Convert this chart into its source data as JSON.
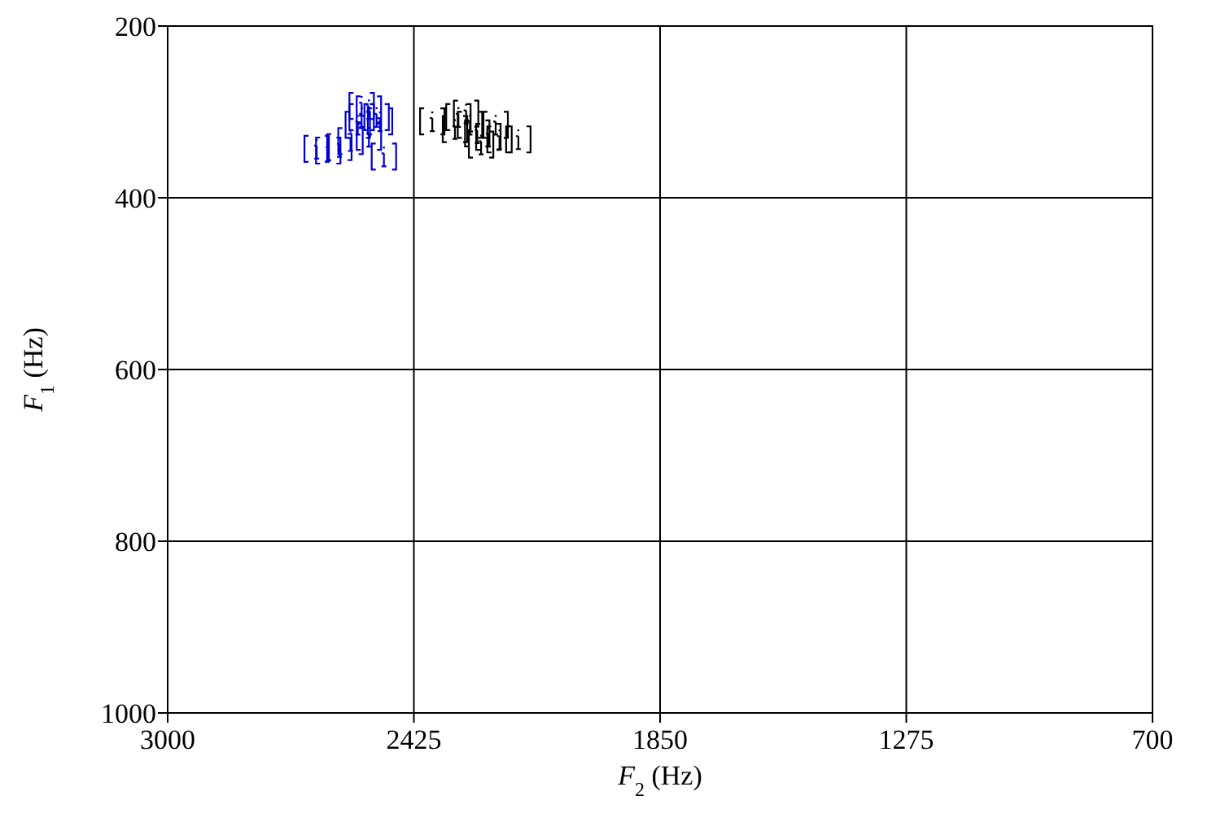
{
  "chart_data": {
    "type": "scatter",
    "xlabel": "F$_{2}$ (Hz)",
    "ylabel": "F$_{1}$ (Hz)",
    "xlim": [
      3000,
      700
    ],
    "xticks": [
      3000,
      2425,
      1850,
      1275,
      700
    ],
    "ylim": [
      1000,
      200
    ],
    "yticks": [
      200,
      400,
      600,
      800,
      1000
    ],
    "grid": true,
    "series": [
      {
        "color": "#0000cc",
        "x": [
          2652,
          2625,
          2599,
          2573,
          2556,
          2547,
          2530,
          2504,
          2495,
          2530,
          2547,
          2512
        ],
        "values": [
          343,
          345,
          341,
          334,
          315,
          306,
          297,
          311,
          352,
          329,
          293,
          306
        ]
      },
      {
        "color": "#000000",
        "x": [
          2382,
          2321,
          2294,
          2277,
          2251,
          2225,
          2181,
          2303,
          2268,
          2329,
          2234
        ],
        "values": [
          311,
          306,
          315,
          325,
          329,
          332,
          332,
          302,
          338,
          320,
          315
        ]
      }
    ]
  }
}
